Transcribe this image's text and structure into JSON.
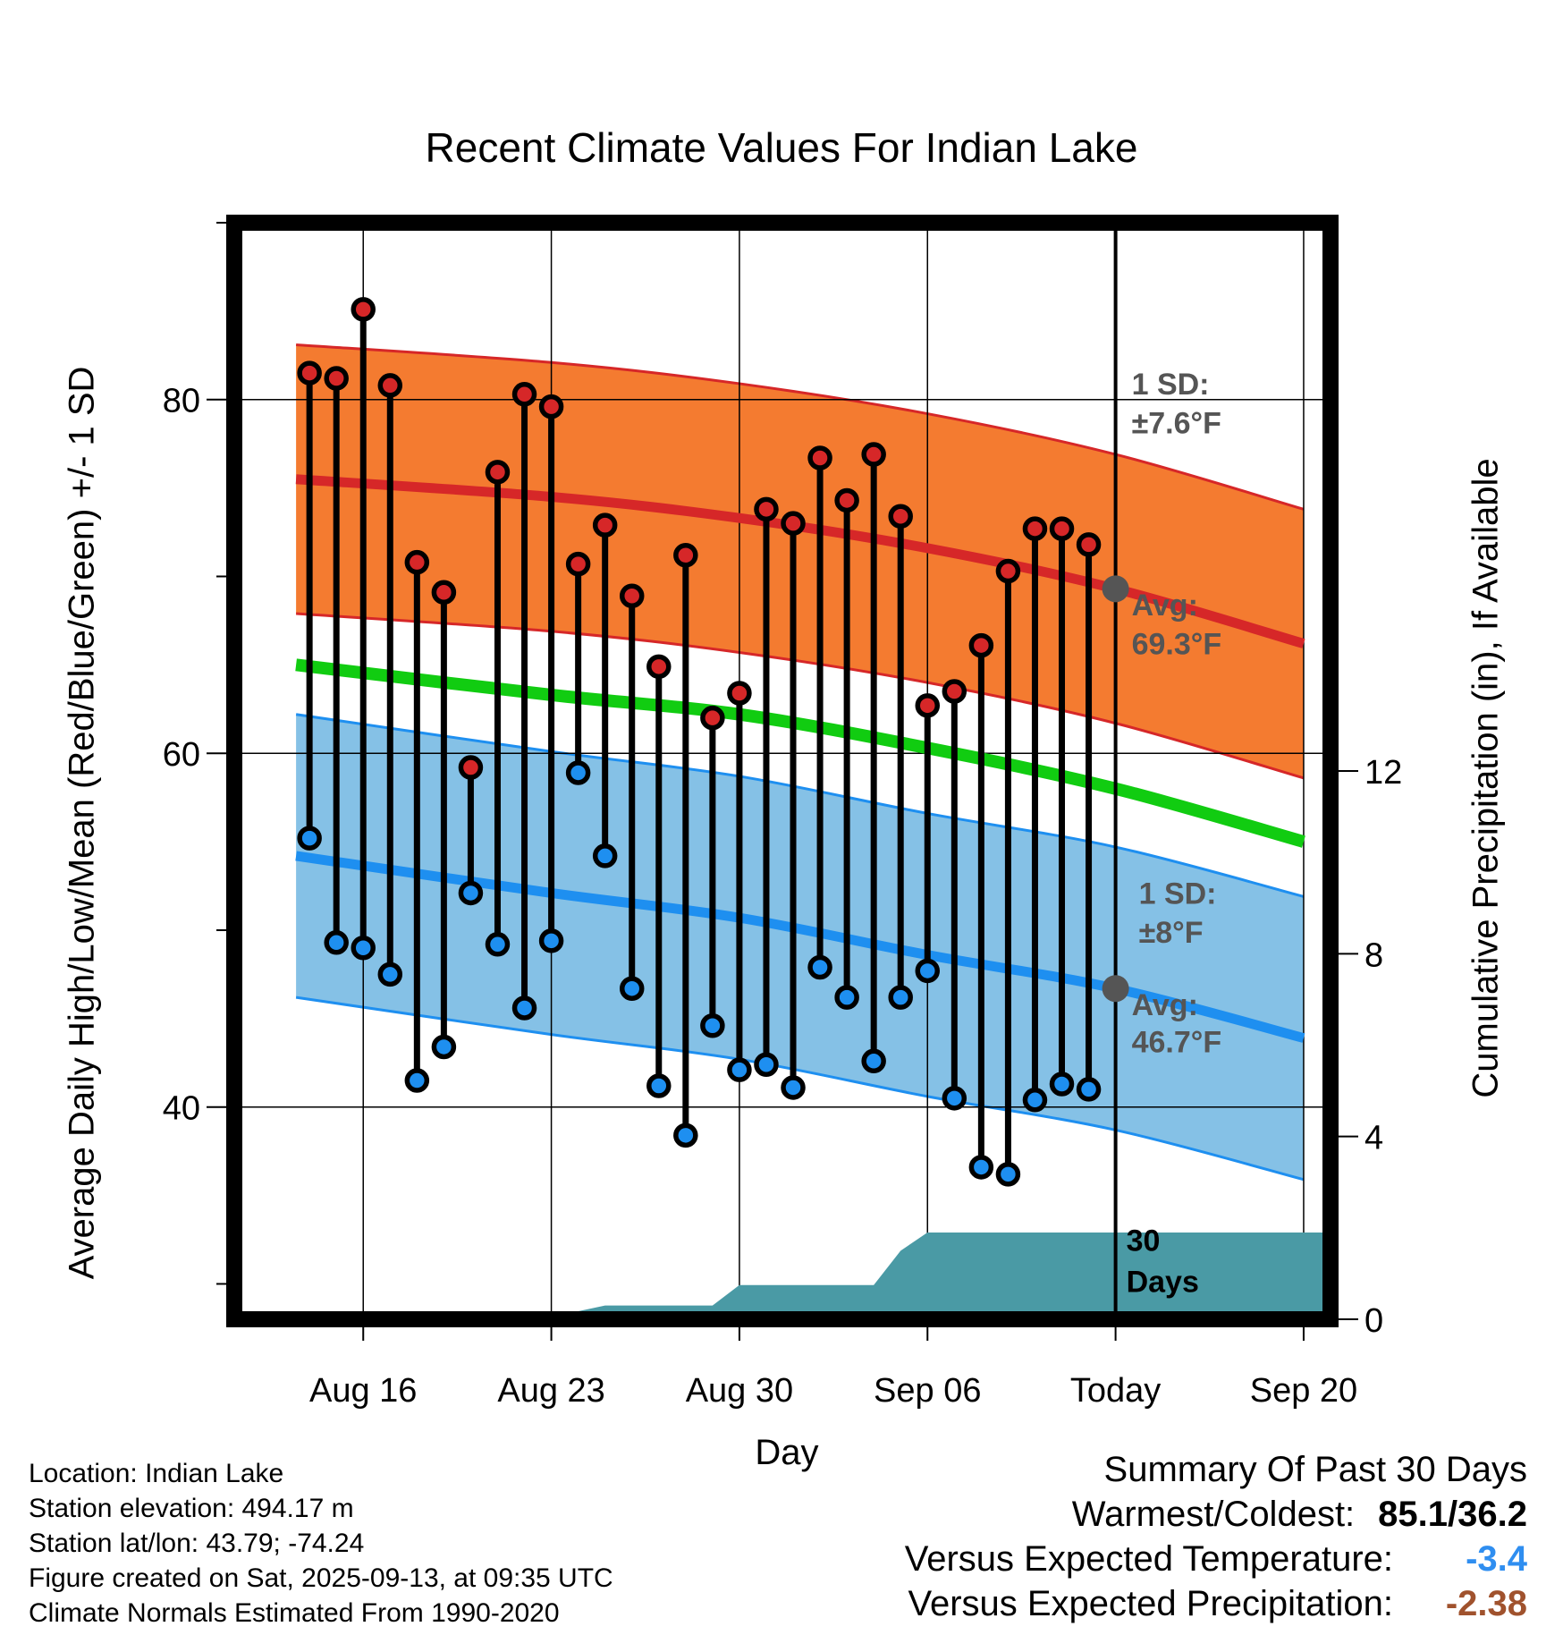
{
  "chart_data": {
    "type": "line",
    "title": "Recent Climate Values For Indian Lake",
    "xlabel": "Day",
    "ylabel": "Average Daily High/Low/Mean (Red/Blue/Green) +/- 1 SD",
    "ylabel_right": "Cumulative Precipitation (in), If Available",
    "x_range": [
      -4.8,
      36
    ],
    "ylim": [
      28,
      90
    ],
    "ylim_right": [
      0,
      24
    ],
    "x_ticks": [
      {
        "x": 0,
        "label": "Aug 16"
      },
      {
        "x": 7,
        "label": "Aug 23"
      },
      {
        "x": 14,
        "label": "Aug 30"
      },
      {
        "x": 21,
        "label": "Sep 06"
      },
      {
        "x": 28,
        "label": "Today"
      },
      {
        "x": 35,
        "label": "Sep 20"
      }
    ],
    "y_ticks": [
      40,
      60,
      80
    ],
    "y_ticks_right": [
      0,
      4,
      8,
      12
    ],
    "today_x": 28,
    "normals": {
      "x": [
        -2.5,
        7,
        14,
        21,
        28,
        35
      ],
      "high_mean": [
        75.5,
        74.5,
        73.3,
        71.6,
        69.3,
        66.2
      ],
      "high_sd": 7.6,
      "low_mean": [
        54.2,
        52.1,
        50.7,
        48.6,
        46.7,
        43.9
      ],
      "low_sd": 8,
      "mean": [
        65,
        63.3,
        62.2,
        60.3,
        58,
        55
      ]
    },
    "series": [
      {
        "name": "High",
        "color": "#d62728",
        "x": [
          -2,
          -1,
          0,
          1,
          2,
          3,
          4,
          5,
          6,
          7,
          8,
          9,
          10,
          11,
          12,
          13,
          14,
          15,
          16,
          17,
          18,
          19,
          20,
          21,
          22,
          23,
          24,
          25,
          26,
          27
        ],
        "values": [
          81.5,
          81.2,
          85.1,
          80.8,
          70.8,
          69.1,
          59.2,
          75.9,
          80.3,
          79.6,
          70.7,
          72.9,
          68.9,
          64.9,
          71.2,
          62,
          63.4,
          73.8,
          73,
          76.7,
          74.3,
          76.9,
          73.4,
          62.7,
          63.5,
          66.1,
          70.3,
          72.7,
          72.7,
          71.8
        ]
      },
      {
        "name": "Low",
        "color": "#1e8ff0",
        "x": [
          -2,
          -1,
          0,
          1,
          2,
          3,
          4,
          5,
          6,
          7,
          8,
          9,
          10,
          11,
          12,
          13,
          14,
          15,
          16,
          17,
          18,
          19,
          20,
          21,
          22,
          23,
          24,
          25,
          26,
          27
        ],
        "values": [
          55.2,
          49.3,
          49,
          47.5,
          41.5,
          43.4,
          52.1,
          49.2,
          45.6,
          49.4,
          58.9,
          54.2,
          46.7,
          41.2,
          38.4,
          44.6,
          42.1,
          42.4,
          41.1,
          47.9,
          46.2,
          42.6,
          46.2,
          47.7,
          40.5,
          36.6,
          36.2,
          40.4,
          41.3,
          41
        ]
      }
    ],
    "precipitation": {
      "x": [
        -4.6,
        4,
        7,
        9,
        13,
        14,
        19,
        20,
        21,
        36
      ],
      "values": [
        0,
        0.05,
        0.05,
        0.3,
        0.3,
        0.75,
        0.75,
        1.5,
        1.9,
        1.9
      ]
    },
    "annotations": {
      "high_sd_label": "1 SD:",
      "high_sd_value": "±7.6°F",
      "high_avg_label": "Avg:",
      "high_avg_value": "69.3°F",
      "low_sd_label": "1 SD:",
      "low_sd_value": "±8°F",
      "low_avg_label": "Avg:",
      "low_avg_value": "46.7°F",
      "period_label_1": "30",
      "period_label_2": "Days"
    },
    "high_avg_today": 69.3,
    "low_avg_today": 46.7
  },
  "info": {
    "location": "Location: Indian Lake",
    "elevation": "Station elevation: 494.17 m",
    "latlon": "Station lat/lon: 43.79; -74.24",
    "created": "Figure created on Sat, 2025-09-13, at 09:35 UTC",
    "normals": "Climate Normals Estimated From 1990-2020"
  },
  "summary": {
    "heading": "Summary Of Past 30 Days",
    "warmest_label": "Warmest/Coldest:",
    "warmest_value": "85.1/36.2",
    "temp_label": "Versus Expected Temperature:",
    "temp_value": "-3.4",
    "precip_label": "Versus Expected Precipitation:",
    "precip_value": "-2.38"
  },
  "colors": {
    "high_band": "#f47b30",
    "high_line": "#d62728",
    "low_band": "#85c1e6",
    "low_line": "#1e8ff0",
    "mean_line": "#11cc11",
    "precip_fill": "#4a9aa5",
    "annotation_text": "#555555"
  }
}
